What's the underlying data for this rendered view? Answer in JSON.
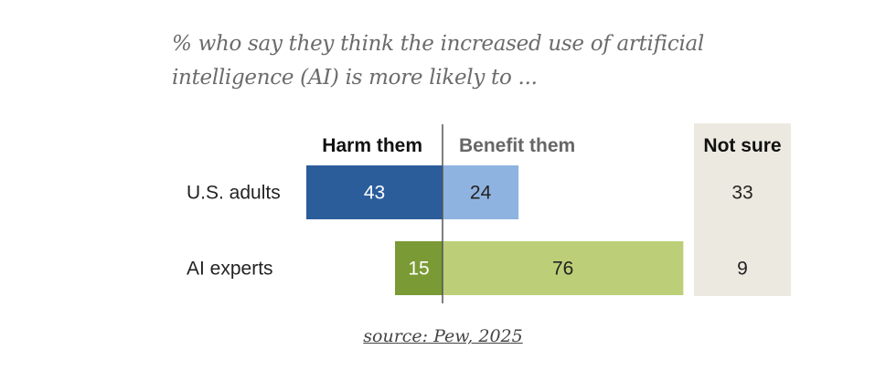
{
  "chart_data": {
    "type": "bar",
    "orientation": "horizontal-diverging",
    "title": "% who say they think the increased use of artificial intelligence (AI) is more likely to ...",
    "categories": [
      "U.S. adults",
      "AI experts"
    ],
    "series": [
      {
        "name": "Harm them",
        "values": [
          43,
          15
        ],
        "colors": [
          "#2b5d9b",
          "#7a9a35"
        ],
        "label_colors": [
          "#ffffff",
          "#ffffff"
        ]
      },
      {
        "name": "Benefit them",
        "values": [
          24,
          76
        ],
        "colors": [
          "#8fb3e0",
          "#bccf78"
        ],
        "label_colors": [
          "#222222",
          "#222222"
        ]
      },
      {
        "name": "Not sure",
        "values": [
          33,
          9
        ]
      }
    ],
    "header_colors": {
      "harm": "#111111",
      "benefit": "#666666",
      "not_sure": "#111111"
    },
    "not_sure_panel_color": "#eceae0",
    "xlabel": "",
    "ylabel": ""
  },
  "source": "source: Pew, 2025"
}
